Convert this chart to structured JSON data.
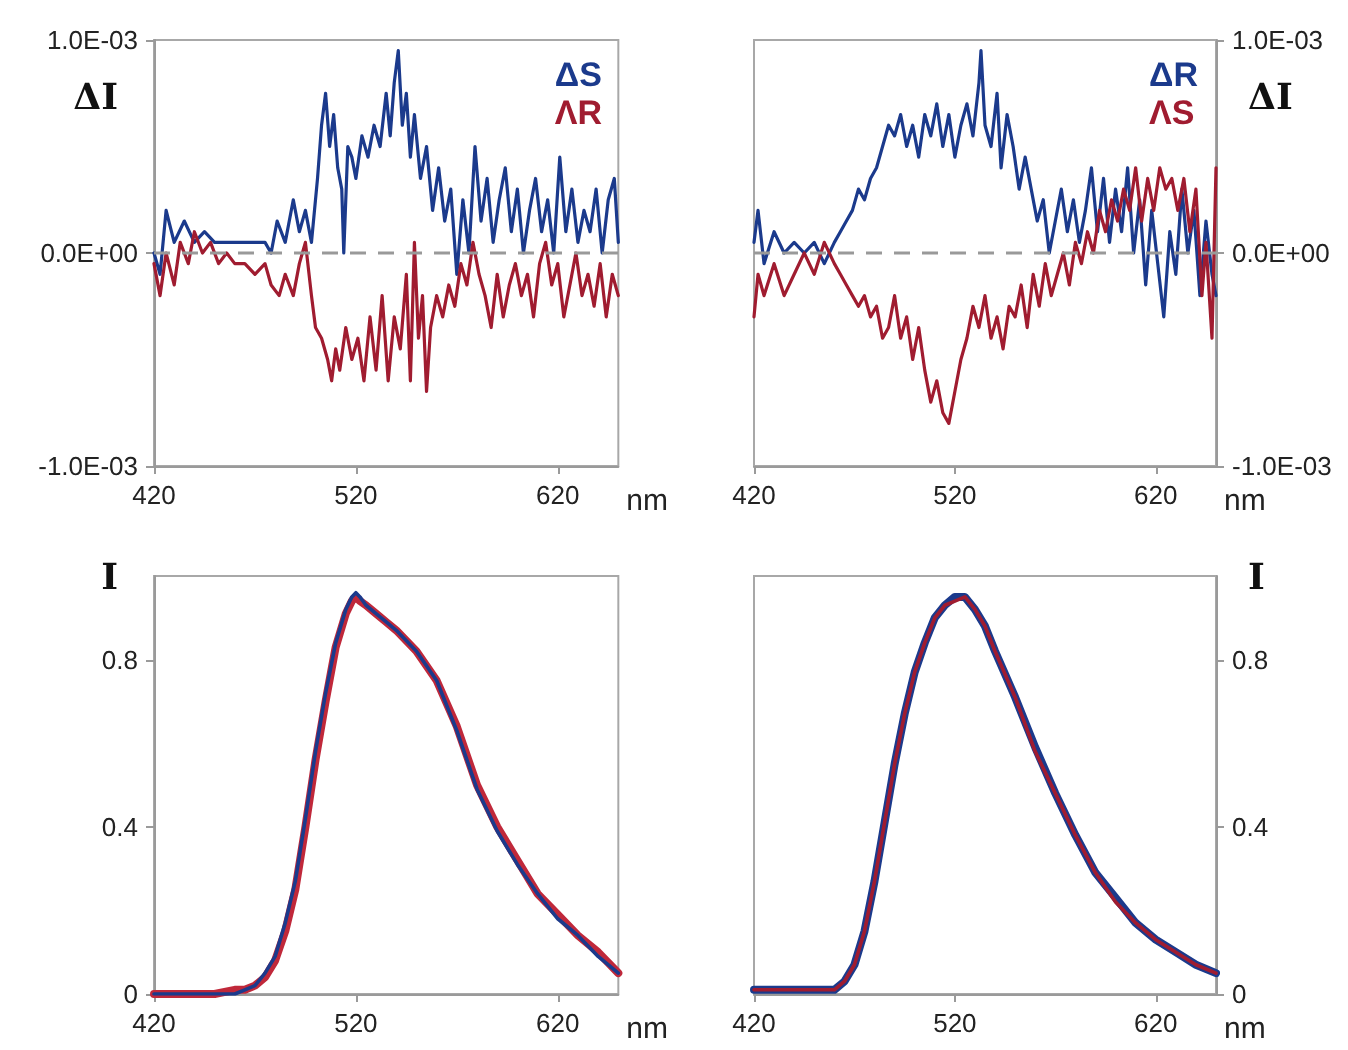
{
  "chart_data": [
    {
      "type": "line",
      "ylabel": "ΔI",
      "xlabel": "nm",
      "xlim": [
        420,
        650
      ],
      "xticks": [
        420,
        520,
        620
      ],
      "ylim": [
        -0.001,
        0.001
      ],
      "yticks": [
        {
          "value": -0.001,
          "label": "-1.0E-03"
        },
        {
          "value": 0,
          "label": "0.0E+00"
        },
        {
          "value": 0.001,
          "label": "1.0E-03"
        }
      ],
      "grid": false,
      "legend": "top right",
      "marker": "none",
      "line_style": "solid",
      "ref_lines": [
        {
          "axis": "y",
          "value": 0,
          "color": "#999999",
          "line_style": "dashed"
        }
      ],
      "series": [
        {
          "name": "ΔS",
          "color": "#1b3a8c",
          "x": [
            420,
            423,
            426,
            430,
            435,
            440,
            445,
            450,
            455,
            460,
            465,
            470,
            475,
            478,
            481,
            485,
            489,
            492,
            495,
            498,
            501,
            503,
            505,
            507,
            509,
            511,
            513,
            514,
            516,
            518,
            520,
            523,
            526,
            529,
            532,
            535,
            537,
            539,
            541,
            543,
            545,
            547,
            549,
            552,
            555,
            558,
            561,
            564,
            567,
            570,
            573,
            576,
            579,
            582,
            585,
            588,
            591,
            594,
            597,
            600,
            603,
            606,
            609,
            612,
            615,
            618,
            621,
            624,
            627,
            630,
            633,
            636,
            639,
            642,
            645,
            648,
            650
          ],
          "values": [
            0,
            -0.0001,
            0.0002,
            5e-05,
            0.00015,
            5e-05,
            0.0001,
            5e-05,
            5e-05,
            5e-05,
            5e-05,
            5e-05,
            5e-05,
            0,
            0.00015,
            5e-05,
            0.00025,
            0.0001,
            0.0002,
            5e-05,
            0.00035,
            0.0006,
            0.00075,
            0.0005,
            0.00065,
            0.0004,
            0.0003,
            0,
            0.0005,
            0.00045,
            0.00035,
            0.00055,
            0.00045,
            0.0006,
            0.0005,
            0.00075,
            0.00055,
            0.0008,
            0.00095,
            0.0006,
            0.00075,
            0.00045,
            0.00065,
            0.00035,
            0.0005,
            0.0002,
            0.0004,
            0.00015,
            0.0003,
            -0.0001,
            0.00025,
            0,
            0.0005,
            0.00015,
            0.00035,
            5e-05,
            0.00025,
            0.0004,
            0.0001,
            0.0003,
            0,
            0.0002,
            0.00035,
            0.0001,
            0.00025,
            0,
            0.00045,
            0.0001,
            0.0003,
            5e-05,
            0.0002,
            0.0001,
            0.0003,
            0,
            0.00025,
            0.00035,
            5e-05
          ]
        },
        {
          "name": "ΛR",
          "color": "#a01c30",
          "x": [
            420,
            423,
            426,
            430,
            433,
            437,
            440,
            444,
            448,
            452,
            456,
            460,
            465,
            470,
            475,
            478,
            482,
            485,
            489,
            492,
            495,
            498,
            500,
            503,
            506,
            508,
            510,
            512,
            515,
            518,
            521,
            524,
            527,
            530,
            533,
            536,
            539,
            542,
            545,
            547,
            549,
            551,
            553,
            555,
            557,
            560,
            563,
            566,
            569,
            572,
            575,
            578,
            581,
            584,
            587,
            590,
            593,
            596,
            599,
            602,
            605,
            608,
            611,
            614,
            617,
            620,
            623,
            626,
            629,
            632,
            635,
            638,
            641,
            644,
            647,
            650
          ],
          "values": [
            -5e-05,
            -0.0002,
            0,
            -0.00015,
            5e-05,
            -5e-05,
            0.0001,
            0,
            5e-05,
            -5e-05,
            0,
            -5e-05,
            -5e-05,
            -0.0001,
            -5e-05,
            -0.00015,
            -0.0002,
            -0.0001,
            -0.0002,
            -5e-05,
            5e-05,
            -0.0002,
            -0.00035,
            -0.0004,
            -0.0005,
            -0.0006,
            -0.00045,
            -0.00055,
            -0.00035,
            -0.0005,
            -0.0004,
            -0.0006,
            -0.0003,
            -0.00055,
            -0.0002,
            -0.0006,
            -0.0003,
            -0.00045,
            -0.0001,
            -0.0006,
            5e-05,
            -0.0004,
            -0.0002,
            -0.00065,
            -0.00035,
            -0.0002,
            -0.0003,
            -0.00015,
            -0.00025,
            -5e-05,
            -0.00015,
            5e-05,
            -0.0001,
            -0.0002,
            -0.00035,
            -0.0001,
            -0.0003,
            -0.00015,
            -5e-05,
            -0.0002,
            -0.0001,
            -0.0003,
            -5e-05,
            5e-05,
            -0.00015,
            -5e-05,
            -0.0003,
            -0.00015,
            0,
            -0.0002,
            -0.0001,
            -0.00025,
            -5e-05,
            -0.0003,
            -0.0001,
            -0.0002
          ]
        }
      ]
    },
    {
      "type": "line",
      "y2label": "ΔI",
      "xlabel": "nm",
      "xlim": [
        420,
        650
      ],
      "xticks": [
        420,
        520,
        620
      ],
      "y2lim": [
        -0.001,
        0.001
      ],
      "y2ticks": [
        {
          "value": -0.001,
          "label": "-1.0E-03"
        },
        {
          "value": 0,
          "label": "0.0E+00"
        },
        {
          "value": 0.001,
          "label": "1.0E-03"
        }
      ],
      "grid": false,
      "legend": "top right",
      "marker": "none",
      "line_style": "solid",
      "ref_lines": [
        {
          "axis": "y2",
          "value": 0,
          "color": "#999999",
          "line_style": "dashed"
        }
      ],
      "series": [
        {
          "name": "ΔR",
          "color": "#1b3a8c",
          "axis": "y2",
          "x": [
            420,
            422,
            425,
            430,
            435,
            440,
            445,
            450,
            455,
            460,
            463,
            466,
            469,
            472,
            475,
            478,
            481,
            484,
            487,
            490,
            493,
            496,
            499,
            502,
            505,
            508,
            511,
            514,
            517,
            520,
            523,
            526,
            529,
            532,
            533,
            535,
            538,
            541,
            543,
            546,
            549,
            552,
            555,
            558,
            561,
            564,
            567,
            570,
            573,
            576,
            579,
            582,
            585,
            588,
            591,
            594,
            597,
            600,
            603,
            606,
            609,
            612,
            615,
            618,
            621,
            624,
            627,
            630,
            633,
            636,
            639,
            642,
            645,
            648,
            650
          ],
          "values": [
            5e-05,
            0.0002,
            -5e-05,
            0.0001,
            0,
            5e-05,
            0,
            5e-05,
            -5e-05,
            5e-05,
            0.0001,
            0.00015,
            0.0002,
            0.0003,
            0.00025,
            0.00035,
            0.0004,
            0.0005,
            0.0006,
            0.00055,
            0.00065,
            0.0005,
            0.0006,
            0.00045,
            0.00065,
            0.00055,
            0.0007,
            0.0005,
            0.00065,
            0.00045,
            0.0006,
            0.0007,
            0.00055,
            0.0008,
            0.00095,
            0.0006,
            0.0005,
            0.00075,
            0.0004,
            0.00065,
            0.0005,
            0.0003,
            0.00045,
            0.0003,
            0.00015,
            0.00025,
            0,
            0.00015,
            0.0003,
            0.0001,
            0.00025,
            5e-05,
            0.0002,
            0.0004,
            0.0001,
            0.00035,
            5e-05,
            0.0003,
            0.0001,
            0.0004,
            0,
            0.00025,
            -0.00015,
            0.0002,
            -5e-05,
            -0.0003,
            0.0001,
            -0.0001,
            0.0003,
            0,
            0.0002,
            -0.0002,
            0.00015,
            -0.0001,
            -0.0002
          ]
        },
        {
          "name": "ΛS",
          "color": "#a01c30",
          "axis": "y2",
          "x": [
            420,
            422,
            425,
            430,
            435,
            440,
            445,
            450,
            455,
            460,
            463,
            466,
            469,
            472,
            475,
            478,
            481,
            484,
            487,
            490,
            493,
            496,
            499,
            502,
            505,
            508,
            511,
            514,
            517,
            520,
            523,
            526,
            529,
            532,
            535,
            538,
            541,
            544,
            547,
            550,
            553,
            556,
            559,
            562,
            565,
            568,
            571,
            574,
            577,
            580,
            583,
            586,
            589,
            592,
            595,
            598,
            601,
            604,
            607,
            610,
            613,
            616,
            619,
            622,
            625,
            628,
            631,
            634,
            637,
            640,
            643,
            645,
            648,
            650
          ],
          "values": [
            -0.0003,
            -0.0001,
            -0.0002,
            -5e-05,
            -0.0002,
            -0.0001,
            0,
            -0.0001,
            5e-05,
            -5e-05,
            -0.0001,
            -0.00015,
            -0.0002,
            -0.00025,
            -0.0002,
            -0.0003,
            -0.00025,
            -0.0004,
            -0.00035,
            -0.0002,
            -0.0004,
            -0.0003,
            -0.0005,
            -0.00035,
            -0.00055,
            -0.0007,
            -0.0006,
            -0.00075,
            -0.0008,
            -0.00065,
            -0.0005,
            -0.0004,
            -0.00025,
            -0.00035,
            -0.0002,
            -0.0004,
            -0.0003,
            -0.00045,
            -0.00025,
            -0.0003,
            -0.00015,
            -0.00035,
            -0.0001,
            -0.00025,
            -5e-05,
            -0.0002,
            -0.0001,
            0,
            -0.00015,
            5e-05,
            -5e-05,
            0.0001,
            0,
            0.0002,
            0.0001,
            0.00025,
            0.00015,
            0.0003,
            0.0002,
            0.0004,
            0.00015,
            0.00035,
            0.0002,
            0.0004,
            0.0003,
            0.00035,
            0.0002,
            0.00035,
            0.0001,
            0.0003,
            -0.0002,
            5e-05,
            -0.0004,
            0.0004
          ]
        }
      ]
    },
    {
      "type": "line",
      "ylabel": "I",
      "xlabel": "nm",
      "xlim": [
        420,
        650
      ],
      "xticks": [
        420,
        520,
        620
      ],
      "ylim": [
        0,
        1
      ],
      "yticks": [
        0,
        0.4,
        0.8
      ],
      "grid": false,
      "legend": false,
      "marker": "none",
      "line_style": "solid",
      "series": [
        {
          "color": "#c0283a",
          "x": [
            420,
            430,
            440,
            450,
            460,
            465,
            470,
            475,
            480,
            485,
            490,
            495,
            500,
            505,
            510,
            515,
            518,
            520,
            522,
            525,
            530,
            535,
            540,
            550,
            560,
            570,
            580,
            590,
            600,
            610,
            620,
            630,
            640,
            650
          ],
          "values": [
            0,
            0,
            0,
            0,
            0.01,
            0.01,
            0.02,
            0.04,
            0.08,
            0.15,
            0.25,
            0.4,
            0.56,
            0.7,
            0.83,
            0.91,
            0.94,
            0.95,
            0.94,
            0.93,
            0.91,
            0.89,
            0.87,
            0.82,
            0.75,
            0.64,
            0.5,
            0.4,
            0.32,
            0.24,
            0.19,
            0.14,
            0.1,
            0.05
          ]
        },
        {
          "color": "#1b3a8c",
          "x": [
            420,
            430,
            440,
            450,
            460,
            465,
            470,
            475,
            480,
            485,
            490,
            495,
            500,
            505,
            510,
            515,
            518,
            520,
            522,
            525,
            530,
            535,
            540,
            550,
            560,
            570,
            580,
            590,
            600,
            610,
            620,
            630,
            640,
            650
          ],
          "values": [
            0,
            0,
            0,
            0,
            0,
            0.01,
            0.02,
            0.05,
            0.09,
            0.17,
            0.27,
            0.42,
            0.58,
            0.72,
            0.84,
            0.92,
            0.95,
            0.96,
            0.95,
            0.93,
            0.91,
            0.89,
            0.87,
            0.82,
            0.75,
            0.63,
            0.49,
            0.39,
            0.31,
            0.24,
            0.18,
            0.14,
            0.09,
            0.05
          ]
        }
      ]
    },
    {
      "type": "line",
      "y2label": "I",
      "xlabel": "nm",
      "xlim": [
        420,
        650
      ],
      "xticks": [
        420,
        520,
        620
      ],
      "y2lim": [
        0,
        1
      ],
      "y2ticks": [
        0,
        0.4,
        0.8
      ],
      "grid": false,
      "legend": false,
      "marker": "none",
      "line_style": "solid",
      "series": [
        {
          "color": "#1b3a8c",
          "axis": "y2",
          "x": [
            420,
            440,
            455,
            460,
            465,
            470,
            475,
            480,
            485,
            490,
            495,
            500,
            505,
            510,
            515,
            520,
            525,
            530,
            535,
            540,
            550,
            560,
            570,
            580,
            590,
            600,
            610,
            620,
            630,
            640,
            650
          ],
          "values": [
            0.01,
            0.01,
            0.01,
            0.01,
            0.03,
            0.07,
            0.15,
            0.27,
            0.41,
            0.55,
            0.67,
            0.77,
            0.84,
            0.9,
            0.93,
            0.95,
            0.95,
            0.92,
            0.88,
            0.82,
            0.71,
            0.59,
            0.48,
            0.38,
            0.29,
            0.23,
            0.17,
            0.13,
            0.1,
            0.07,
            0.05
          ]
        },
        {
          "color": "#a01c30",
          "axis": "y2",
          "x": [
            420,
            440,
            455,
            460,
            465,
            470,
            475,
            480,
            485,
            490,
            495,
            500,
            505,
            510,
            515,
            520,
            525,
            530,
            535,
            540,
            550,
            560,
            570,
            580,
            590,
            600,
            610,
            620,
            630,
            640,
            650
          ],
          "values": [
            0.01,
            0.01,
            0.01,
            0.01,
            0.03,
            0.07,
            0.15,
            0.27,
            0.41,
            0.55,
            0.67,
            0.77,
            0.84,
            0.9,
            0.93,
            0.94,
            0.95,
            0.92,
            0.88,
            0.82,
            0.71,
            0.58,
            0.48,
            0.38,
            0.29,
            0.22,
            0.17,
            0.13,
            0.1,
            0.07,
            0.05
          ]
        }
      ]
    }
  ]
}
